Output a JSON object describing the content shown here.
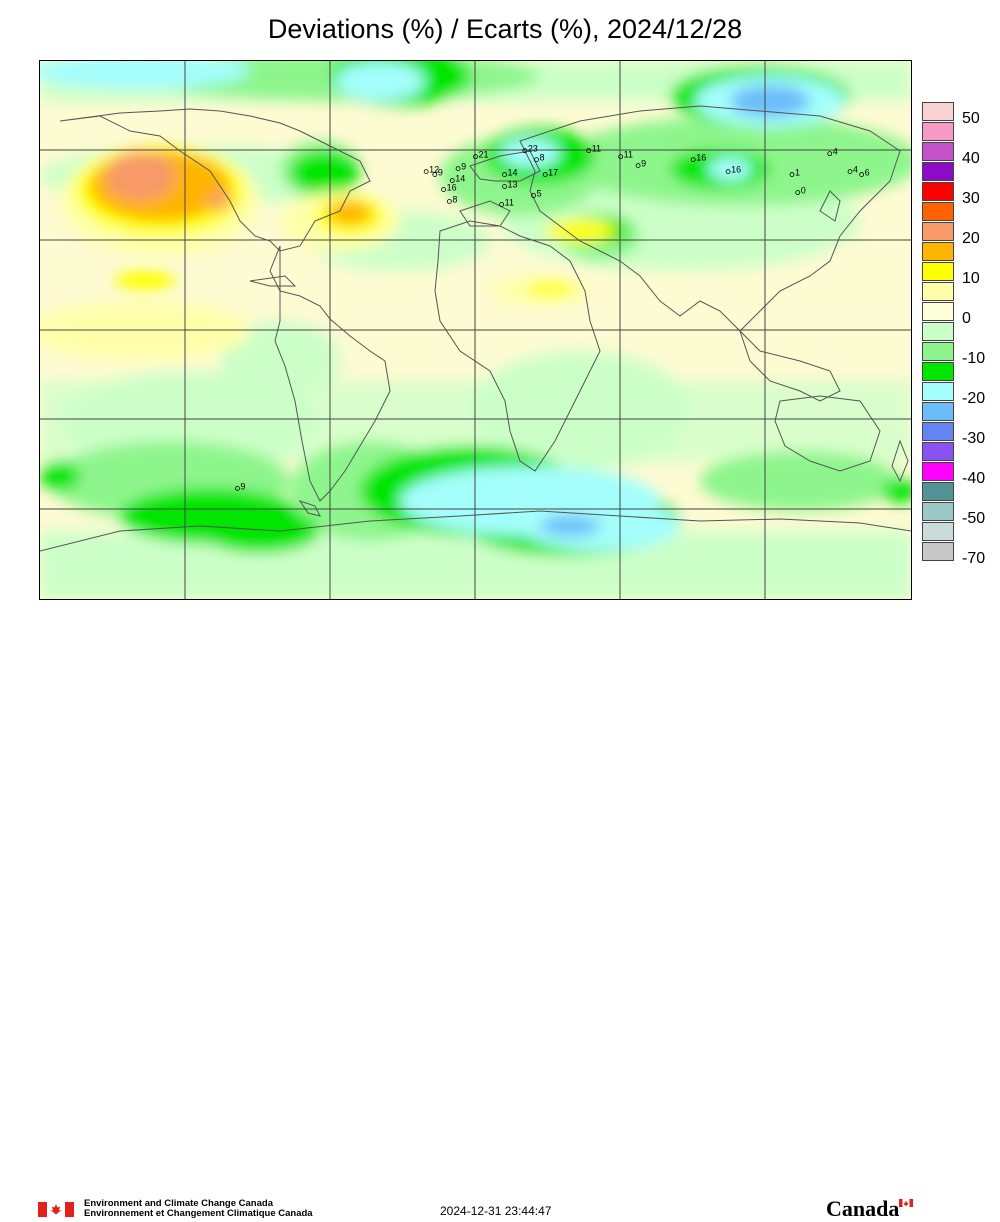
{
  "title": "Deviations (%) / Ecarts (%), 2024/12/28",
  "legend": {
    "levels": [
      {
        "label": "50",
        "color": "#f9d3d3"
      },
      {
        "label": "",
        "color": "#f79ac6"
      },
      {
        "label": "40",
        "color": "#c552c8"
      },
      {
        "label": "",
        "color": "#8d0ac8"
      },
      {
        "label": "30",
        "color": "#ff0000"
      },
      {
        "label": "",
        "color": "#ff6200"
      },
      {
        "label": "20",
        "color": "#f79a68"
      },
      {
        "label": "",
        "color": "#ffb400"
      },
      {
        "label": "10",
        "color": "#ffff00"
      },
      {
        "label": "",
        "color": "#ffffaa"
      },
      {
        "label": "0",
        "color": "#fefed8"
      },
      {
        "label": "",
        "color": "#ccffc8"
      },
      {
        "label": "-10",
        "color": "#8ef58c"
      },
      {
        "label": "",
        "color": "#00e600"
      },
      {
        "label": "-20",
        "color": "#a4fefc"
      },
      {
        "label": "",
        "color": "#6cbcfa"
      },
      {
        "label": "-30",
        "color": "#6484f2"
      },
      {
        "label": "",
        "color": "#8a52f0"
      },
      {
        "label": "-40",
        "color": "#ff00ff"
      },
      {
        "label": "",
        "color": "#559296"
      },
      {
        "label": "-50",
        "color": "#9cc8c8"
      },
      {
        "label": "",
        "color": "#c8dcdc"
      },
      {
        "label": "-70",
        "color": "#c8c8c8"
      }
    ]
  },
  "stations": [
    {
      "label": "12",
      "lon": -7,
      "lat": 53
    },
    {
      "label": "9",
      "lon": -4,
      "lat": 52
    },
    {
      "label": "21",
      "lon": 10,
      "lat": 58
    },
    {
      "label": "9",
      "lon": 4,
      "lat": 54
    },
    {
      "label": "23",
      "lon": 27,
      "lat": 60
    },
    {
      "label": "8",
      "lon": 31,
      "lat": 57
    },
    {
      "label": "14",
      "lon": 20,
      "lat": 52
    },
    {
      "label": "17",
      "lon": 34,
      "lat": 52
    },
    {
      "label": "14",
      "lon": 2,
      "lat": 50
    },
    {
      "label": "13",
      "lon": 20,
      "lat": 48
    },
    {
      "label": "16",
      "lon": -1,
      "lat": 47
    },
    {
      "label": "5",
      "lon": 30,
      "lat": 45
    },
    {
      "label": "8",
      "lon": 1,
      "lat": 43
    },
    {
      "label": "11",
      "lon": 19,
      "lat": 42
    },
    {
      "label": "11",
      "lon": 49,
      "lat": 60
    },
    {
      "label": "11",
      "lon": 60,
      "lat": 58
    },
    {
      "label": "9",
      "lon": 66,
      "lat": 55
    },
    {
      "label": "16",
      "lon": 85,
      "lat": 57
    },
    {
      "label": "16",
      "lon": 97,
      "lat": 53
    },
    {
      "label": "4",
      "lon": 132,
      "lat": 59
    },
    {
      "label": "4",
      "lon": 139,
      "lat": 53
    },
    {
      "label": "1",
      "lon": 119,
      "lat": 52
    },
    {
      "label": "6",
      "lon": 143,
      "lat": 52
    },
    {
      "label": "0",
      "lon": 121,
      "lat": 46
    },
    {
      "label": "9",
      "lon": -72,
      "lat": -53
    }
  ],
  "footer": {
    "org_en": "Environment and Climate Change Canada",
    "org_fr": "Environnement et Changement Climatique Canada",
    "timestamp": "2024-12-31 23:44:47",
    "wordmark": "Canada"
  }
}
